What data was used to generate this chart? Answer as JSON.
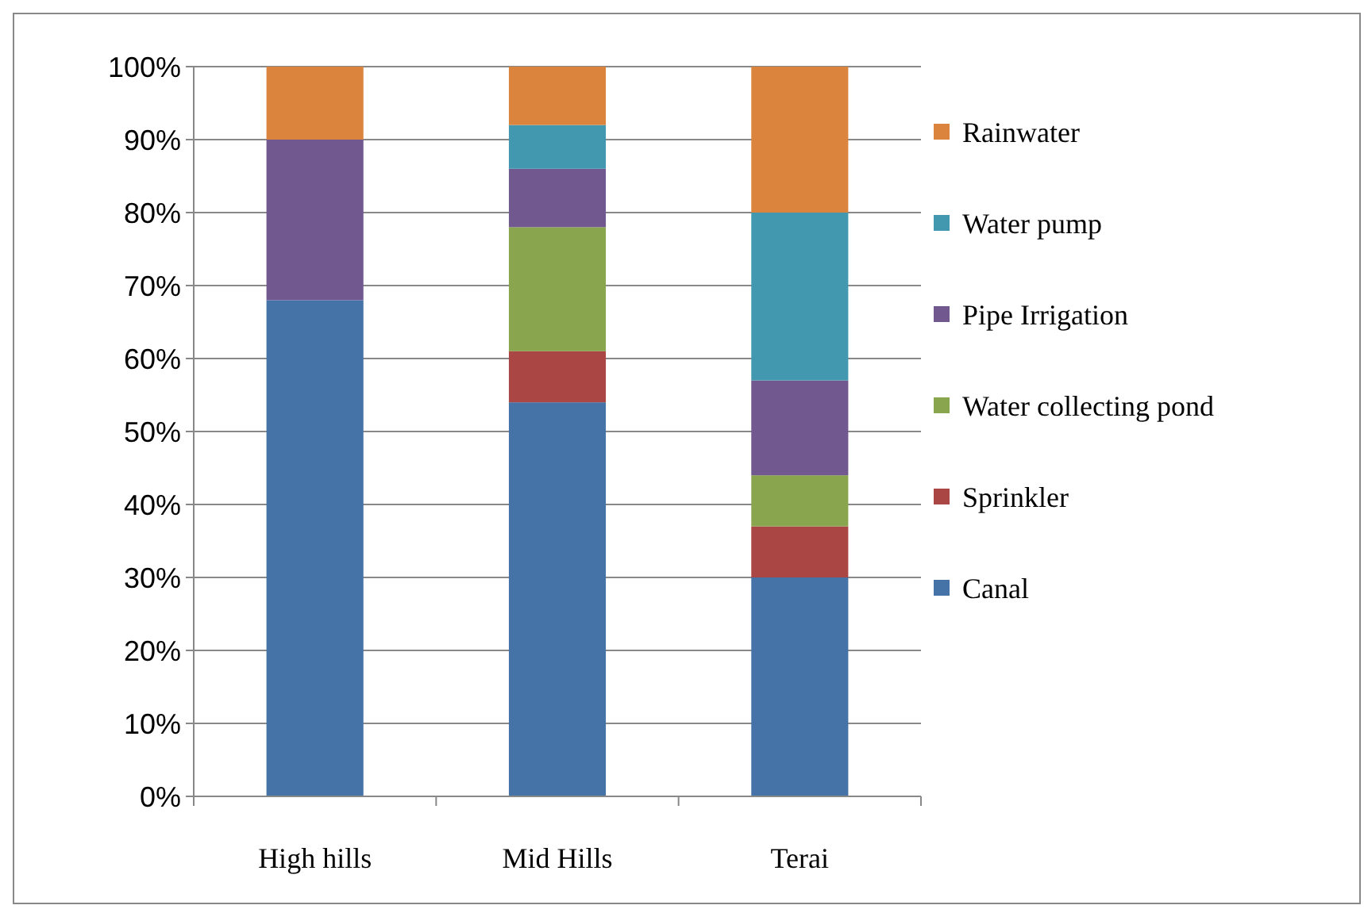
{
  "chart_data": {
    "type": "bar",
    "stacked": true,
    "categories": [
      "High hills",
      "Mid Hills",
      "Terai"
    ],
    "series": [
      {
        "name": "Canal",
        "color": "#4572a7",
        "values": [
          68,
          54,
          30
        ]
      },
      {
        "name": "Sprinkler",
        "color": "#aa4643",
        "values": [
          0,
          7,
          7
        ]
      },
      {
        "name": "Water collecting pond",
        "color": "#89a54e",
        "values": [
          0,
          17,
          7
        ]
      },
      {
        "name": "Pipe Irrigation",
        "color": "#71588f",
        "values": [
          22,
          8,
          13
        ]
      },
      {
        "name": "Water pump",
        "color": "#4198af",
        "values": [
          0,
          6,
          23
        ]
      },
      {
        "name": "Rainwater",
        "color": "#db843d",
        "values": [
          10,
          8,
          20
        ]
      }
    ],
    "ylim": [
      0,
      100
    ],
    "yticks": [
      {
        "value": 0,
        "label": "0%"
      },
      {
        "value": 10,
        "label": "10%"
      },
      {
        "value": 20,
        "label": "20%"
      },
      {
        "value": 30,
        "label": "30%"
      },
      {
        "value": 40,
        "label": "40%"
      },
      {
        "value": 50,
        "label": "50%"
      },
      {
        "value": 60,
        "label": "60%"
      },
      {
        "value": 70,
        "label": "70%"
      },
      {
        "value": 80,
        "label": "80%"
      },
      {
        "value": 90,
        "label": "90%"
      },
      {
        "value": 100,
        "label": "100%"
      }
    ],
    "grid": "y",
    "legend": "right"
  }
}
